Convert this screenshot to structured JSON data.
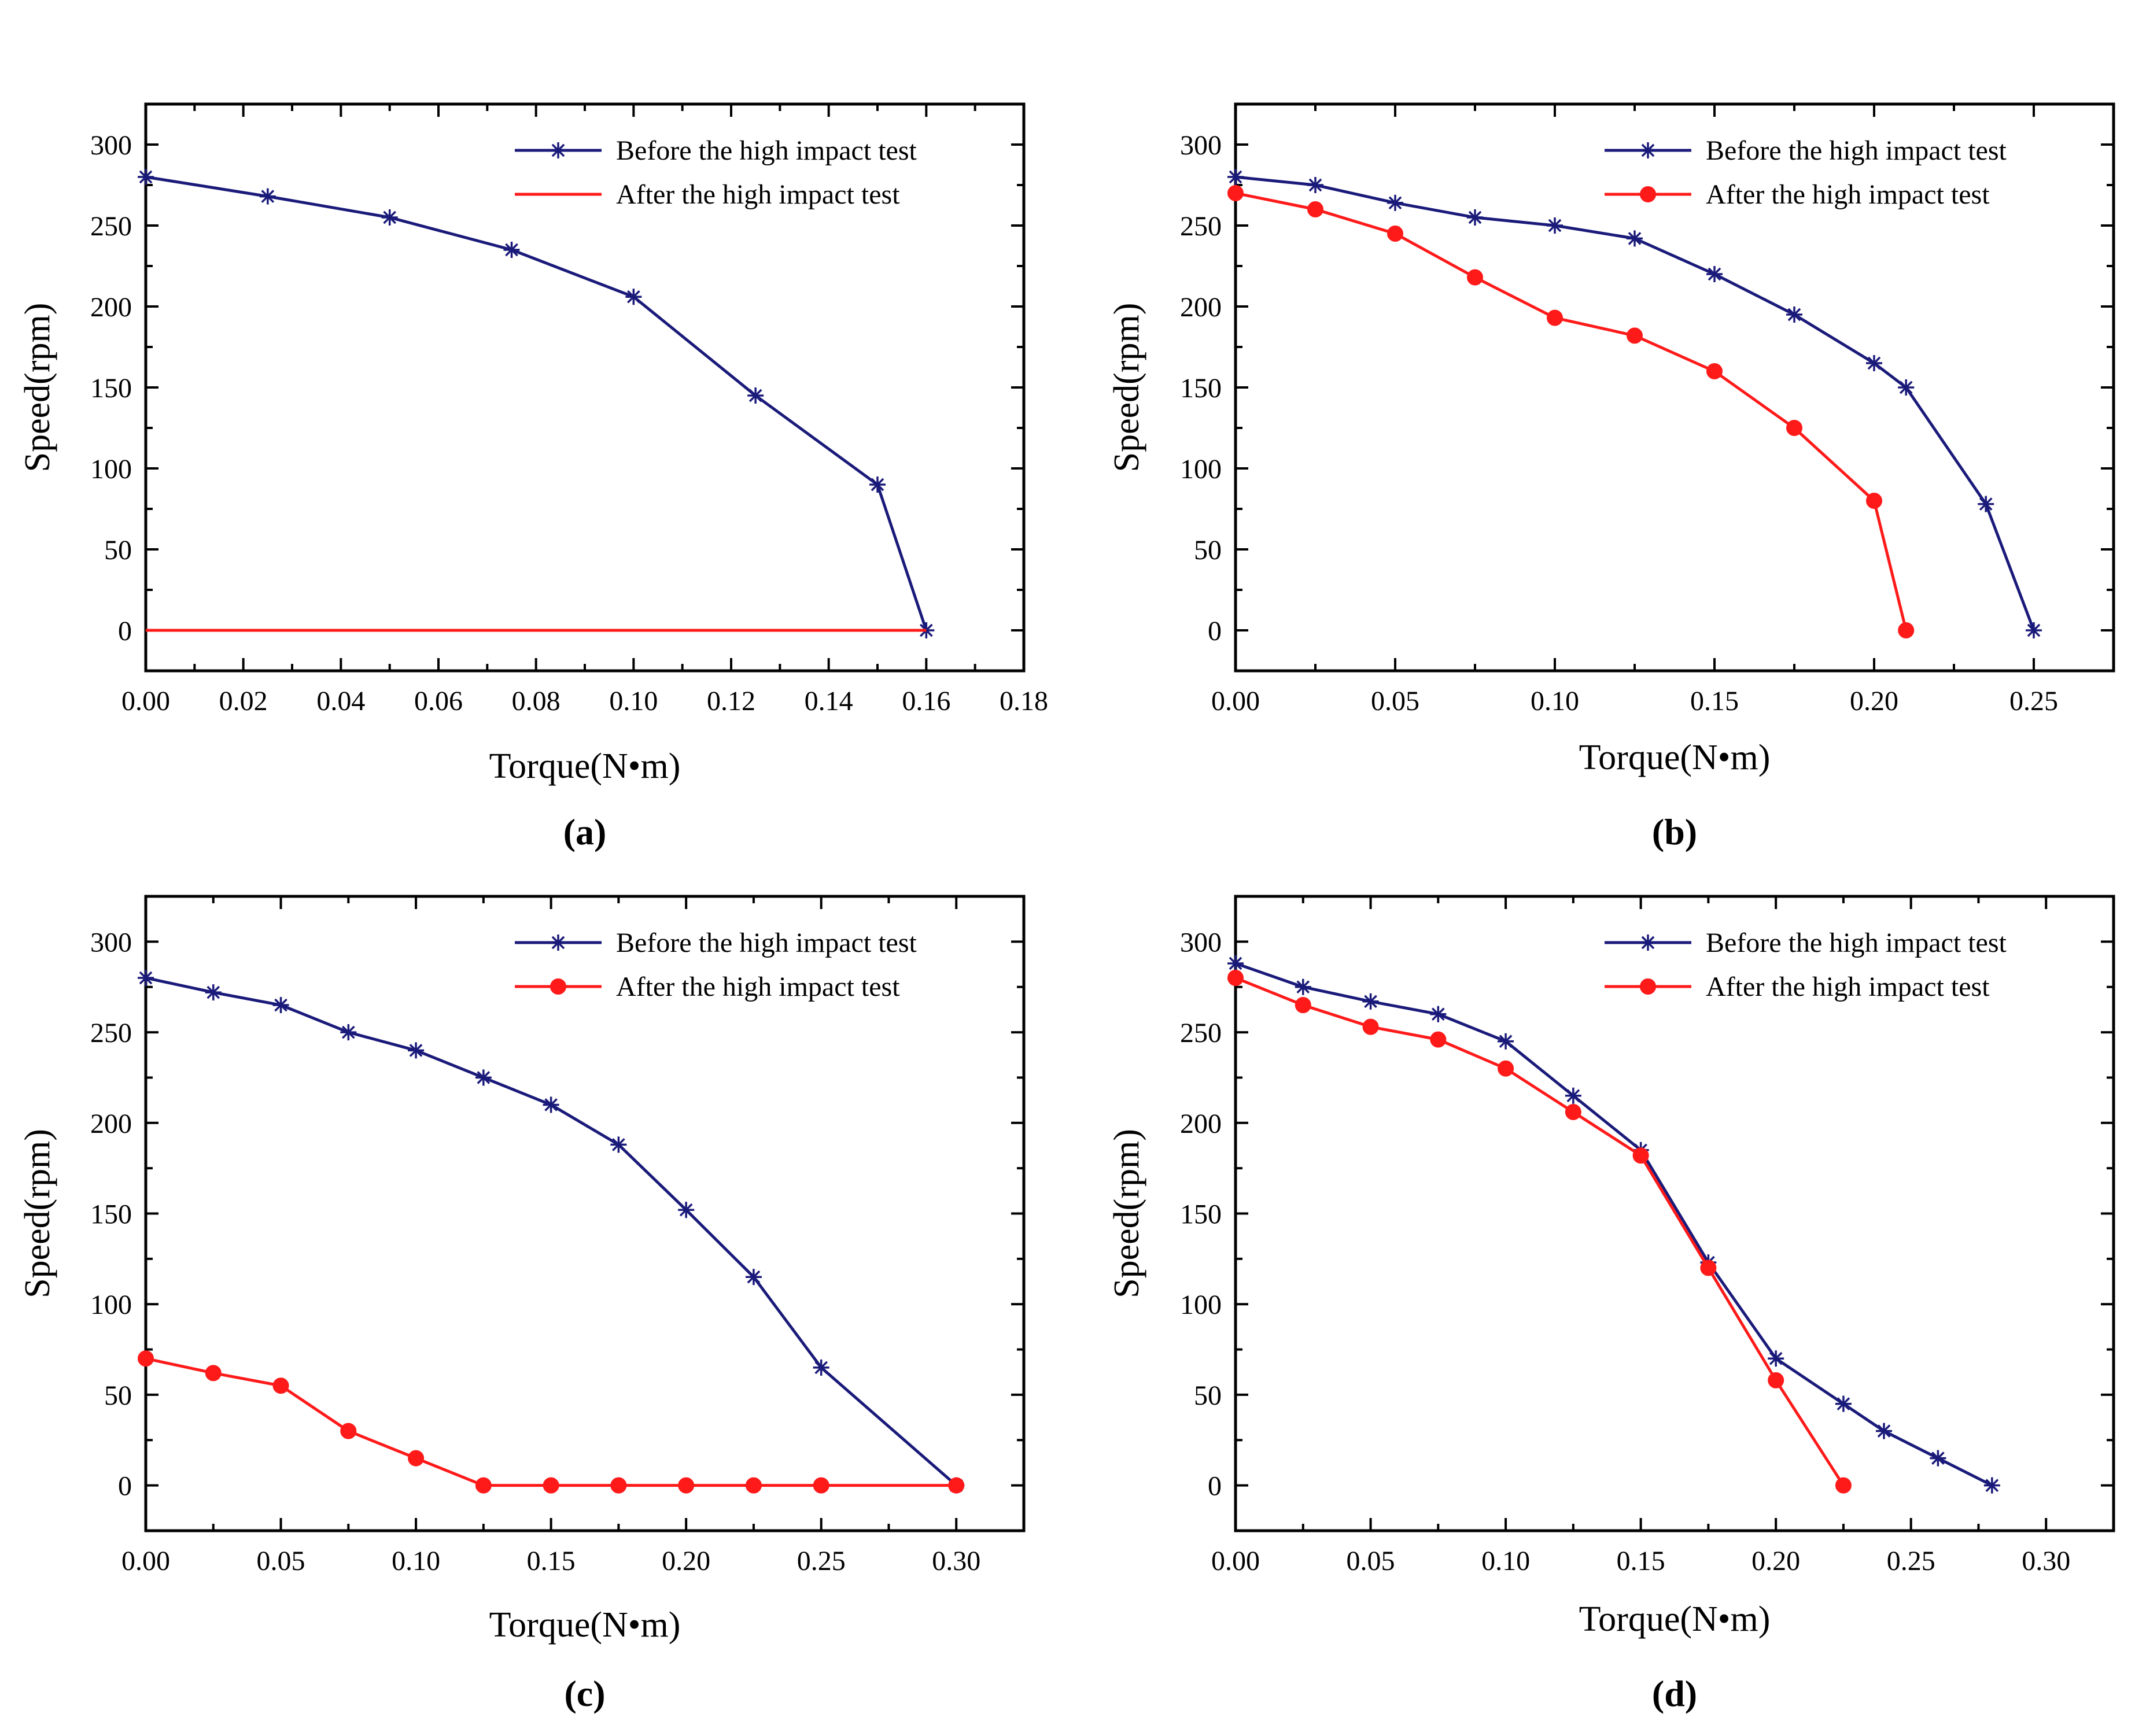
{
  "colors": {
    "before": "#1a1a7a",
    "after": "#ff1a1a",
    "axis": "#000000"
  },
  "chart_data": [
    {
      "type": "line",
      "panel_label": "(a)",
      "xlabel": "Torque(N•m)",
      "ylabel": "Speed(rpm)",
      "xlim": [
        0,
        0.18
      ],
      "ylim": [
        -25,
        325
      ],
      "xticks": [
        0,
        0.02,
        0.04,
        0.06,
        0.08,
        0.1,
        0.12,
        0.14,
        0.16,
        0.18
      ],
      "xtick_labels": [
        "0.00",
        "0.02",
        "0.04",
        "0.06",
        "0.08",
        "0.10",
        "0.12",
        "0.14",
        "0.16",
        "0.18"
      ],
      "yticks": [
        0,
        50,
        100,
        150,
        200,
        250,
        300
      ],
      "ytick_labels": [
        "0",
        "50",
        "100",
        "150",
        "200",
        "250",
        "300"
      ],
      "legend": "top-right",
      "series": [
        {
          "name": "Before the high impact test",
          "marker": "star",
          "color": "#1a1a7a",
          "x": [
            0,
            0.025,
            0.05,
            0.075,
            0.1,
            0.125,
            0.15,
            0.16
          ],
          "y": [
            280,
            268,
            255,
            235,
            206,
            145,
            90,
            0
          ]
        },
        {
          "name": "After the high impact test",
          "marker": "none",
          "color": "#ff1a1a",
          "x": [
            0,
            0.16
          ],
          "y": [
            0,
            0
          ]
        }
      ]
    },
    {
      "type": "line",
      "panel_label": "(b)",
      "xlabel": "Torque(N•m)",
      "ylabel": "Speed(rpm)",
      "xlim": [
        0,
        0.275
      ],
      "ylim": [
        -25,
        325
      ],
      "xticks": [
        0,
        0.05,
        0.1,
        0.15,
        0.2,
        0.25
      ],
      "xtick_labels": [
        "0.00",
        "0.05",
        "0.10",
        "0.15",
        "0.20",
        "0.25"
      ],
      "yticks": [
        0,
        50,
        100,
        150,
        200,
        250,
        300
      ],
      "ytick_labels": [
        "0",
        "50",
        "100",
        "150",
        "200",
        "250",
        "300"
      ],
      "legend": "top-right",
      "series": [
        {
          "name": "Before the high impact test",
          "marker": "star",
          "color": "#1a1a7a",
          "x": [
            0,
            0.025,
            0.05,
            0.075,
            0.1,
            0.125,
            0.15,
            0.175,
            0.2,
            0.21,
            0.235,
            0.25
          ],
          "y": [
            280,
            275,
            264,
            255,
            250,
            242,
            220,
            195,
            165,
            150,
            78,
            0
          ]
        },
        {
          "name": "After the high impact test",
          "marker": "circle",
          "color": "#ff1a1a",
          "x": [
            0,
            0.025,
            0.05,
            0.075,
            0.1,
            0.125,
            0.15,
            0.175,
            0.2,
            0.21
          ],
          "y": [
            270,
            260,
            245,
            218,
            193,
            182,
            160,
            125,
            80,
            0
          ]
        }
      ]
    },
    {
      "type": "line",
      "panel_label": "(c)",
      "xlabel": "Torque(N•m)",
      "ylabel": "Speed(rpm)",
      "xlim": [
        0,
        0.325
      ],
      "ylim": [
        -25,
        325
      ],
      "xticks": [
        0,
        0.05,
        0.1,
        0.15,
        0.2,
        0.25,
        0.3
      ],
      "xtick_labels": [
        "0.00",
        "0.05",
        "0.10",
        "0.15",
        "0.20",
        "0.25",
        "0.30"
      ],
      "yticks": [
        0,
        50,
        100,
        150,
        200,
        250,
        300
      ],
      "ytick_labels": [
        "0",
        "50",
        "100",
        "150",
        "200",
        "250",
        "300"
      ],
      "legend": "top-right",
      "series": [
        {
          "name": "Before the high impact test",
          "marker": "star",
          "color": "#1a1a7a",
          "x": [
            0,
            0.025,
            0.05,
            0.075,
            0.1,
            0.125,
            0.15,
            0.175,
            0.2,
            0.225,
            0.25,
            0.3
          ],
          "y": [
            280,
            272,
            265,
            250,
            240,
            225,
            210,
            188,
            152,
            115,
            65,
            0
          ]
        },
        {
          "name": "After the high impact test",
          "marker": "circle",
          "color": "#ff1a1a",
          "x": [
            0,
            0.025,
            0.05,
            0.075,
            0.1,
            0.125,
            0.15,
            0.175,
            0.2,
            0.225,
            0.25,
            0.3
          ],
          "y": [
            70,
            62,
            55,
            30,
            15,
            0,
            0,
            0,
            0,
            0,
            0,
            0
          ]
        }
      ]
    },
    {
      "type": "line",
      "panel_label": "(d)",
      "xlabel": "Torque(N•m)",
      "ylabel": "Speed(rpm)",
      "xlim": [
        0,
        0.325
      ],
      "ylim": [
        -25,
        325
      ],
      "xticks": [
        0,
        0.05,
        0.1,
        0.15,
        0.2,
        0.25,
        0.3
      ],
      "xtick_labels": [
        "0.00",
        "0.05",
        "0.10",
        "0.15",
        "0.20",
        "0.25",
        "0.30"
      ],
      "yticks": [
        0,
        50,
        100,
        150,
        200,
        250,
        300
      ],
      "ytick_labels": [
        "0",
        "50",
        "100",
        "150",
        "200",
        "250",
        "300"
      ],
      "legend": "top-right",
      "series": [
        {
          "name": "Before the high impact test",
          "marker": "star",
          "color": "#1a1a7a",
          "x": [
            0,
            0.025,
            0.05,
            0.075,
            0.1,
            0.125,
            0.15,
            0.175,
            0.2,
            0.225,
            0.24,
            0.26,
            0.28
          ],
          "y": [
            288,
            275,
            267,
            260,
            245,
            215,
            185,
            123,
            70,
            45,
            30,
            15,
            0
          ]
        },
        {
          "name": "After the high impact test",
          "marker": "circle",
          "color": "#ff1a1a",
          "x": [
            0,
            0.025,
            0.05,
            0.075,
            0.1,
            0.125,
            0.15,
            0.175,
            0.2,
            0.225
          ],
          "y": [
            280,
            265,
            253,
            246,
            230,
            206,
            182,
            120,
            58,
            0
          ]
        }
      ]
    }
  ]
}
